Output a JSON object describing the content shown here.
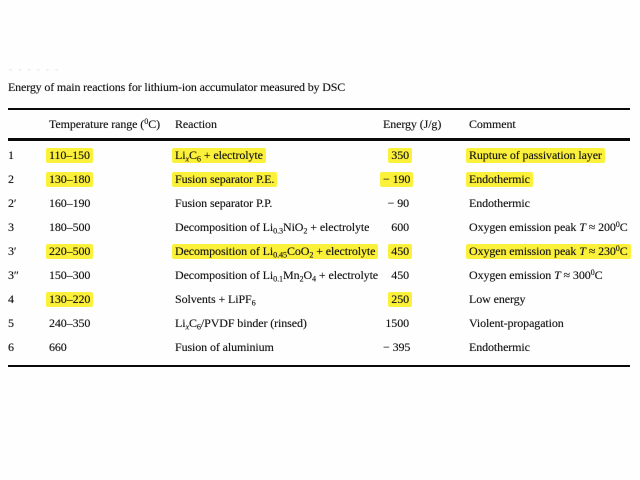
{
  "artifact_marks": "- - - - -  -",
  "caption": "Energy of main reactions for lithium-ion accumulator measured by DSC",
  "colors": {
    "highlight": "#fcf13a",
    "rule": "#0a0a0a",
    "text": "#151515"
  },
  "table": {
    "headers": {
      "id": "",
      "temp": "Temperature range (^0^C)",
      "reaction": "Reaction",
      "energy": "Energy (J/g)",
      "comment": "Comment"
    },
    "rows": [
      {
        "id": "1",
        "temp": {
          "text": "110–150",
          "hl": true
        },
        "reaction": {
          "text": "Li~*x*~C~6~ + electrolyte",
          "hl": true
        },
        "energy": {
          "text": "350",
          "hl": true
        },
        "comment": {
          "text": "Rupture of passivation layer",
          "hl": true
        }
      },
      {
        "id": "2",
        "temp": {
          "text": "130–180",
          "hl": true
        },
        "reaction": {
          "text": "Fusion separator P.E.",
          "hl": true
        },
        "energy": {
          "text": "− 190",
          "hl": true
        },
        "comment": {
          "text": "Endothermic",
          "hl": true
        }
      },
      {
        "id": "2′",
        "temp": {
          "text": "160–190",
          "hl": false
        },
        "reaction": {
          "text": "Fusion separator P.P.",
          "hl": false
        },
        "energy": {
          "text": "− 90",
          "hl": false
        },
        "comment": {
          "text": "Endothermic",
          "hl": false
        }
      },
      {
        "id": "3",
        "temp": {
          "text": "180–500",
          "hl": false
        },
        "reaction": {
          "text": "Decomposition of Li~0.3~NiO~2~ + electrolyte",
          "hl": false
        },
        "energy": {
          "text": "600",
          "hl": false
        },
        "comment": {
          "text": "Oxygen emission peak *T* ≈ 200^0^C",
          "hl": false
        }
      },
      {
        "id": "3′",
        "temp": {
          "text": "220–500",
          "hl": true
        },
        "reaction": {
          "text": "Decomposition of Li~0.45~CoO~2~ + electrolyte",
          "hl": true
        },
        "energy": {
          "text": "450",
          "hl": true
        },
        "comment": {
          "text": "Oxygen emission peak *T* ≈ 230^0^C",
          "hl": true
        }
      },
      {
        "id": "3″",
        "temp": {
          "text": "150–300",
          "hl": false
        },
        "reaction": {
          "text": "Decomposition of Li~0.1~Mn~2~O~4~ + electrolyte",
          "hl": false
        },
        "energy": {
          "text": "450",
          "hl": false
        },
        "comment": {
          "text": "Oxygen emission *T* ≈ 300^0^C",
          "hl": false
        }
      },
      {
        "id": "4",
        "temp": {
          "text": "130–220",
          "hl": true
        },
        "reaction": {
          "text": "Solvents + LiPF~6~",
          "hl": false
        },
        "energy": {
          "text": "250",
          "hl": true
        },
        "comment": {
          "text": "Low energy",
          "hl": false
        }
      },
      {
        "id": "5",
        "temp": {
          "text": "240–350",
          "hl": false
        },
        "reaction": {
          "text": "Li~*x*~C~6~/PVDF binder (rinsed)",
          "hl": false
        },
        "energy": {
          "text": "1500",
          "hl": false
        },
        "comment": {
          "text": "Violent-propagation",
          "hl": false
        }
      },
      {
        "id": "6",
        "temp": {
          "text": "660",
          "hl": false
        },
        "reaction": {
          "text": "Fusion of aluminium",
          "hl": false
        },
        "energy": {
          "text": "− 395",
          "hl": false
        },
        "comment": {
          "text": "Endothermic",
          "hl": false
        }
      }
    ]
  }
}
